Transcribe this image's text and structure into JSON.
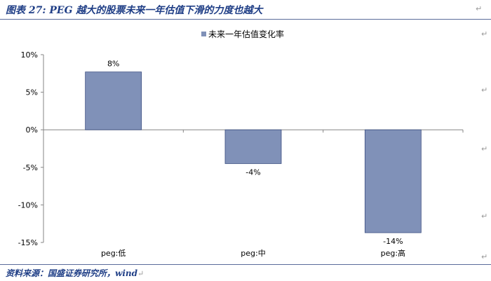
{
  "caption": "图表 27: PEG 越大的股票未来一年估值下滑的力度也越大",
  "source": "资料来源：国盛证券研究所，wind",
  "para_mark": "↵",
  "chart_data": {
    "type": "bar",
    "categories": [
      "peg:低",
      "peg:中",
      "peg:高"
    ],
    "series": [
      {
        "name": "未来一年估值变化率",
        "values": [
          0.077,
          -0.045,
          -0.137
        ],
        "labels": [
          "8%",
          "-4%",
          "-14%"
        ],
        "color": "#8091b8"
      }
    ],
    "ylim": [
      -0.15,
      0.1
    ],
    "yticks": [
      0.1,
      0.05,
      0.0,
      -0.05,
      -0.1,
      -0.15
    ],
    "yticklabels": [
      "10%",
      "5%",
      "0%",
      "-5%",
      "-10%",
      "-15%"
    ],
    "legend": "top-center",
    "grid": false
  }
}
